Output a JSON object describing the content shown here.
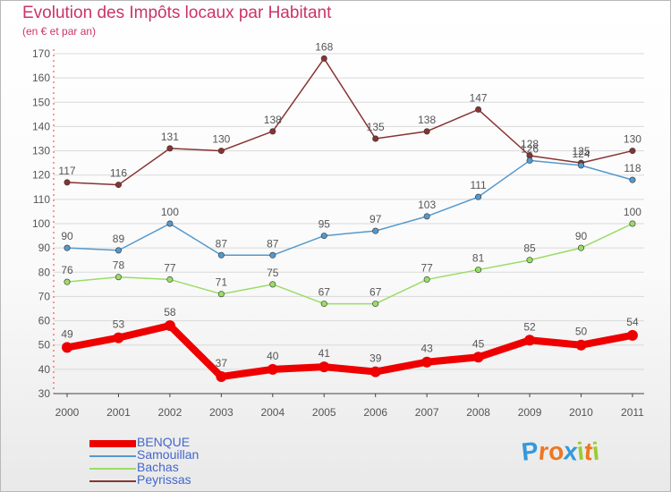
{
  "title": "Evolution des Impôts locaux par Habitant",
  "subtitle": "(en € et par an)",
  "logo": {
    "letters": [
      "P",
      "r",
      "o",
      "x",
      "i",
      "t",
      "i"
    ],
    "colors": [
      "#3399dd",
      "#ee7722",
      "#ee7722",
      "#3399dd",
      "#99cc33",
      "#ee7722",
      "#99cc33"
    ]
  },
  "chart_data": {
    "type": "line",
    "title": "Evolution des Impôts locaux par Habitant",
    "subtitle": "(en € et par an)",
    "xlabel": "",
    "ylabel": "",
    "ylim": [
      30,
      170
    ],
    "yticks": [
      30,
      40,
      50,
      60,
      70,
      80,
      90,
      100,
      110,
      120,
      130,
      140,
      150,
      160,
      170
    ],
    "categories": [
      "2000",
      "2001",
      "2002",
      "2003",
      "2004",
      "2005",
      "2006",
      "2007",
      "2008",
      "2009",
      "2010",
      "2011"
    ],
    "series": [
      {
        "name": "BENQUE",
        "color": "#ee0000",
        "values": [
          49,
          53,
          58,
          37,
          40,
          41,
          39,
          43,
          45,
          52,
          50,
          54
        ]
      },
      {
        "name": "Samouillan",
        "color": "#5599cc",
        "values": [
          90,
          89,
          100,
          87,
          87,
          95,
          97,
          103,
          111,
          126,
          124,
          118
        ]
      },
      {
        "name": "Bachas",
        "color": "#99dd66",
        "values": [
          76,
          78,
          77,
          71,
          75,
          67,
          67,
          77,
          81,
          85,
          90,
          100
        ]
      },
      {
        "name": "Peyrissas",
        "color": "#883333",
        "values": [
          117,
          116,
          131,
          130,
          138,
          168,
          135,
          138,
          147,
          128,
          125,
          130
        ]
      }
    ],
    "legend": "bottom-left"
  }
}
